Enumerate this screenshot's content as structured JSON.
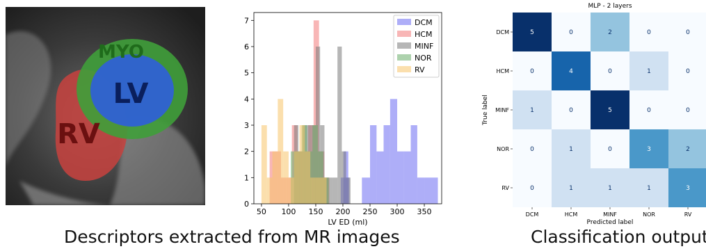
{
  "mr_image": {
    "labels": {
      "myo": "MYO",
      "lv": "LV",
      "rv": "RV"
    },
    "colors": {
      "myo": "#3f9e3a",
      "lv": "#2f5fd8",
      "rv": "#c8423e",
      "myo_text": "#1f6b1b",
      "lv_text": "#0a1f5c",
      "rv_text": "#6b1010"
    }
  },
  "captions": {
    "left": "Descriptors extracted from MR images",
    "right": "Classification output"
  },
  "chart_data": [
    {
      "type": "histogram",
      "xlabel": "LV ED (ml)",
      "xticks": [
        50,
        100,
        150,
        200,
        250,
        300,
        350
      ],
      "yticks": [
        0,
        1,
        2,
        3,
        4,
        5,
        6,
        7
      ],
      "xlim": [
        36,
        382
      ],
      "ylim": [
        0,
        7.3
      ],
      "legend_position": "top-right",
      "series": [
        {
          "name": "DCM",
          "color": "#6b6bf2",
          "bins": [
            [
              196,
              212,
              1
            ],
            [
              201,
              210,
              2
            ],
            [
              235,
              250,
              1
            ],
            [
              250,
              262,
              3
            ],
            [
              262,
              275,
              2
            ],
            [
              275,
              287,
              3
            ],
            [
              287,
              300,
              4
            ],
            [
              300,
              312,
              2
            ],
            [
              312,
              325,
              2
            ],
            [
              325,
              337,
              3
            ],
            [
              337,
              350,
              1
            ],
            [
              350,
              375,
              1
            ]
          ]
        },
        {
          "name": "HCM",
          "color": "#f27a7a",
          "bins": [
            [
              65,
              75,
              2
            ],
            [
              75,
              86,
              2
            ],
            [
              86,
              96,
              1
            ],
            [
              96,
              106,
              1
            ],
            [
              106,
              116,
              3
            ],
            [
              116,
              126,
              2
            ],
            [
              126,
              136,
              2
            ],
            [
              136,
              146,
              3
            ],
            [
              146,
              156,
              7
            ],
            [
              156,
              166,
              2
            ],
            [
              166,
              175,
              1
            ]
          ]
        },
        {
          "name": "MINF",
          "color": "#7a7a7a",
          "bins": [
            [
              110,
              118,
              3
            ],
            [
              118,
              126,
              2
            ],
            [
              126,
              134,
              3
            ],
            [
              134,
              142,
              3
            ],
            [
              142,
              150,
              3
            ],
            [
              150,
              158,
              6
            ],
            [
              158,
              166,
              3
            ],
            [
              166,
              174,
              1
            ],
            [
              174,
              182,
              1
            ],
            [
              182,
              190,
              1
            ],
            [
              190,
              198,
              6
            ],
            [
              198,
              206,
              2
            ],
            [
              206,
              214,
              1
            ]
          ]
        },
        {
          "name": "NOR",
          "color": "#6aad6a",
          "bins": [
            [
              104,
              114,
              2
            ],
            [
              114,
              124,
              2
            ],
            [
              124,
              134,
              3
            ],
            [
              134,
              144,
              2
            ],
            [
              144,
              154,
              3
            ],
            [
              154,
              164,
              2
            ],
            [
              164,
              174,
              1
            ]
          ]
        },
        {
          "name": "RV",
          "color": "#f7c46a",
          "bins": [
            [
              50,
              60,
              3
            ],
            [
              60,
              70,
              1
            ],
            [
              70,
              80,
              2
            ],
            [
              80,
              90,
              4
            ],
            [
              90,
              100,
              2
            ],
            [
              100,
              110,
              1
            ],
            [
              110,
              120,
              2
            ],
            [
              120,
              130,
              3
            ],
            [
              130,
              140,
              2
            ],
            [
              140,
              150,
              1
            ],
            [
              150,
              160,
              1
            ],
            [
              160,
              170,
              1
            ]
          ]
        }
      ]
    },
    {
      "type": "heatmap",
      "title": "MLP - 2 layers",
      "xlabel": "Predicted label",
      "ylabel": "True label",
      "labels": [
        "DCM",
        "HCM",
        "MINF",
        "NOR",
        "RV"
      ],
      "matrix": [
        [
          5,
          0,
          2,
          0,
          0
        ],
        [
          0,
          4,
          0,
          1,
          0
        ],
        [
          1,
          0,
          5,
          0,
          0
        ],
        [
          0,
          1,
          0,
          3,
          2
        ],
        [
          0,
          1,
          1,
          1,
          3
        ]
      ],
      "colormap": "Blues",
      "vmax": 5
    }
  ]
}
